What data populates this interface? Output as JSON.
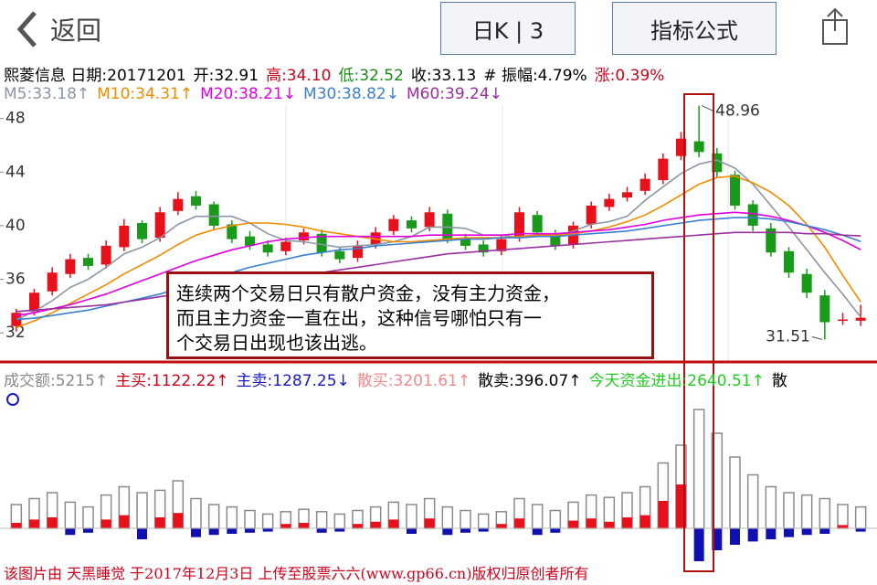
{
  "header": {
    "back": "返回",
    "period_button": "日K | 3",
    "formula_button": "指标公式"
  },
  "info": [
    {
      "text": "熙菱信息 日期:20171201",
      "color": "#000000"
    },
    {
      "text": "开:32.91",
      "color": "#000000"
    },
    {
      "text": "高:34.10",
      "color": "#d0021b"
    },
    {
      "text": "低:32.52",
      "color": "#1a8a1a"
    },
    {
      "text": "收:33.13",
      "color": "#000000"
    },
    {
      "text": "# 振幅:4.79%",
      "color": "#000000"
    },
    {
      "text": "涨:0.39%",
      "color": "#d0021b"
    }
  ],
  "ma_legend": [
    {
      "text": "M5:33.18↑",
      "color": "#8a95a5"
    },
    {
      "text": "M10:34.31↑",
      "color": "#f08c00"
    },
    {
      "text": "M20:38.21↓",
      "color": "#e000e0"
    },
    {
      "text": "M30:38.82↓",
      "color": "#3a7fd0"
    },
    {
      "text": "M60:39.24↓",
      "color": "#9a30a0"
    }
  ],
  "volume_legend": [
    {
      "text": "成交额:5215↑",
      "color": "#8a8a8a"
    },
    {
      "text": "主买:1122.22↑",
      "color": "#d0021b"
    },
    {
      "text": "主卖:1287.25↓",
      "color": "#1a1ac8"
    },
    {
      "text": "散买:3201.61↑",
      "color": "#f08a8a"
    },
    {
      "text": "散卖:396.07↑",
      "color": "#000000"
    },
    {
      "text": "今天资金进出:2640.51↑",
      "color": "#22cc22"
    },
    {
      "text": "散",
      "color": "#000000"
    }
  ],
  "chart_data": {
    "type": "candlestick",
    "open": [
      32.5,
      33.6,
      35.1,
      36.4,
      37.6,
      37.1,
      38.4,
      40.2,
      39.1,
      41.1,
      42.2,
      41.6,
      40.1,
      39.2,
      38.6,
      38.1,
      38.9,
      39.4,
      38.1,
      37.6,
      38.6,
      39.6,
      40.4,
      39.9,
      40.9,
      39.1,
      38.6,
      38.1,
      39.1,
      40.8,
      39.4,
      38.6,
      40.1,
      41.4,
      42.1,
      42.6,
      43.4,
      45.2,
      46.3,
      45.4,
      43.8,
      41.6,
      39.8,
      38.1,
      36.4,
      34.8,
      32.9,
      32.91
    ],
    "high": [
      33.8,
      35.3,
      36.9,
      37.9,
      37.9,
      38.9,
      40.5,
      40.4,
      41.4,
      42.5,
      42.6,
      41.8,
      40.4,
      39.6,
      38.9,
      39.1,
      39.8,
      39.7,
      38.4,
      38.9,
      39.9,
      40.8,
      40.7,
      41.4,
      41.2,
      39.4,
      38.9,
      39.3,
      41.4,
      41.1,
      39.7,
      40.3,
      41.8,
      42.4,
      42.9,
      43.9,
      45.4,
      47.0,
      48.96,
      45.8,
      44.1,
      41.9,
      40.2,
      38.4,
      36.8,
      35.2,
      33.5,
      34.1
    ],
    "low": [
      32.1,
      33.3,
      34.8,
      36.1,
      36.7,
      36.8,
      38.1,
      38.7,
      38.8,
      40.8,
      41.2,
      39.7,
      38.7,
      38.2,
      37.7,
      37.8,
      38.6,
      37.7,
      37.2,
      37.3,
      38.3,
      39.3,
      39.5,
      39.6,
      38.7,
      38.2,
      37.7,
      37.8,
      38.8,
      39.2,
      38.2,
      38.3,
      39.8,
      41.1,
      41.8,
      42.3,
      43.1,
      44.9,
      45.1,
      43.6,
      41.2,
      39.6,
      37.7,
      36.1,
      34.6,
      31.51,
      32.6,
      32.52
    ],
    "close": [
      33.5,
      35.0,
      36.5,
      37.5,
      37.0,
      38.5,
      40.0,
      39.0,
      41.0,
      42.0,
      41.5,
      40.0,
      39.0,
      38.5,
      38.0,
      38.8,
      39.5,
      38.0,
      37.5,
      38.5,
      39.5,
      40.5,
      39.8,
      41.0,
      39.0,
      38.5,
      38.0,
      39.0,
      41.0,
      39.5,
      38.5,
      40.0,
      41.5,
      42.0,
      42.5,
      43.5,
      45.0,
      46.5,
      45.5,
      44.0,
      41.5,
      40.0,
      38.0,
      36.5,
      35.0,
      32.8,
      33.0,
      33.13
    ],
    "up_color": "#e8101a",
    "down_color": "#1a9a1a",
    "ylim": [
      29.9,
      49
    ],
    "yticks": [
      32,
      36,
      40,
      44,
      48
    ],
    "lines": [
      {
        "color": "#8a95a5",
        "values": [
          33.0,
          33.6,
          34.4,
          35.4,
          36.0,
          36.9,
          37.9,
          38.4,
          39.1,
          40.1,
          40.7,
          40.7,
          40.7,
          40.2,
          39.4,
          38.9,
          38.8,
          38.6,
          38.4,
          38.5,
          38.6,
          38.8,
          39.2,
          39.9,
          39.9,
          39.8,
          39.3,
          39.3,
          39.1,
          39.2,
          39.2,
          39.6,
          40.1,
          40.3,
          40.7,
          41.9,
          42.9,
          43.9,
          44.6,
          44.9,
          44.3,
          43.1,
          41.5,
          39.9,
          38.2,
          36.5,
          34.9,
          33.18
        ]
      },
      {
        "color": "#f08c00",
        "values": [
          32.4,
          32.9,
          33.5,
          34.2,
          34.9,
          35.6,
          36.4,
          37.1,
          37.8,
          38.6,
          39.3,
          39.7,
          40.0,
          40.2,
          40.2,
          40.1,
          39.9,
          39.6,
          39.4,
          39.2,
          39.0,
          38.8,
          38.8,
          38.9,
          39.0,
          39.1,
          39.1,
          39.1,
          39.2,
          39.3,
          39.3,
          39.4,
          39.6,
          39.9,
          40.3,
          40.8,
          41.5,
          42.3,
          43.1,
          43.6,
          43.7,
          43.2,
          42.5,
          41.5,
          40.1,
          38.4,
          36.3,
          34.31
        ]
      },
      {
        "color": "#e000e0",
        "values": [
          33.3,
          33.5,
          33.8,
          34.1,
          34.5,
          34.9,
          35.4,
          35.9,
          36.4,
          36.9,
          37.4,
          37.8,
          38.2,
          38.5,
          38.8,
          39.0,
          39.1,
          39.2,
          39.2,
          39.2,
          39.2,
          39.2,
          39.2,
          39.3,
          39.3,
          39.3,
          39.3,
          39.3,
          39.4,
          39.4,
          39.4,
          39.5,
          39.6,
          39.7,
          39.9,
          40.1,
          40.4,
          40.6,
          40.8,
          40.9,
          41.0,
          40.9,
          40.7,
          40.4,
          40.0,
          39.5,
          38.9,
          38.21
        ]
      },
      {
        "color": "#3a7fd0",
        "values": [
          33.0,
          33.1,
          33.3,
          33.5,
          33.7,
          34.0,
          34.3,
          34.6,
          34.9,
          35.3,
          35.7,
          36.1,
          36.5,
          36.9,
          37.2,
          37.5,
          37.8,
          38.0,
          38.2,
          38.3,
          38.5,
          38.6,
          38.7,
          38.8,
          38.9,
          39.0,
          39.0,
          39.1,
          39.1,
          39.2,
          39.2,
          39.3,
          39.4,
          39.5,
          39.6,
          39.8,
          40.0,
          40.2,
          40.4,
          40.5,
          40.6,
          40.6,
          40.5,
          40.3,
          40.0,
          39.7,
          39.3,
          38.82
        ]
      },
      {
        "color": "#9a30a0",
        "values": [
          33.6,
          33.7,
          33.8,
          33.9,
          34.0,
          34.1,
          34.3,
          34.5,
          34.7,
          34.9,
          35.1,
          35.3,
          35.5,
          35.7,
          35.9,
          36.1,
          36.3,
          36.5,
          36.7,
          36.9,
          37.1,
          37.3,
          37.5,
          37.7,
          37.9,
          38.0,
          38.1,
          38.2,
          38.3,
          38.4,
          38.5,
          38.6,
          38.7,
          38.8,
          38.9,
          39.0,
          39.1,
          39.2,
          39.3,
          39.4,
          39.5,
          39.5,
          39.5,
          39.5,
          39.4,
          39.4,
          39.3,
          39.24
        ]
      }
    ]
  },
  "volume_chart": {
    "type": "bar",
    "volume": [
      20,
      25,
      30,
      22,
      18,
      28,
      35,
      30,
      32,
      40,
      25,
      20,
      18,
      15,
      12,
      14,
      16,
      14,
      12,
      15,
      18,
      22,
      20,
      25,
      18,
      15,
      12,
      14,
      25,
      20,
      15,
      22,
      28,
      26,
      30,
      35,
      55,
      70,
      100,
      80,
      60,
      45,
      35,
      30,
      28,
      25,
      20,
      18
    ],
    "net": [
      5,
      8,
      10,
      -6,
      -4,
      8,
      12,
      -10,
      10,
      14,
      -8,
      -6,
      -5,
      -4,
      -3,
      4,
      5,
      -4,
      -3,
      4,
      6,
      8,
      -5,
      9,
      -6,
      -4,
      -3,
      4,
      9,
      -6,
      -4,
      7,
      9,
      6,
      10,
      12,
      25,
      40,
      -30,
      -20,
      -15,
      -12,
      -10,
      -8,
      -6,
      -5,
      3,
      -3
    ],
    "volume_color": "#8a8a8a",
    "up_color": "#e8101a",
    "down_color": "#1010b0"
  },
  "annotation": [
    "连续两个交易日只有散户资金，没有主力资金，",
    "而且主力资金一直在出，这种信号哪怕只有一",
    "个交易日出现也该出逃。"
  ],
  "footer": "该图片由 天黑睡觉 于2017年12月3日 上传至股票六六(www.gp66.cn)版权归原创者所有"
}
